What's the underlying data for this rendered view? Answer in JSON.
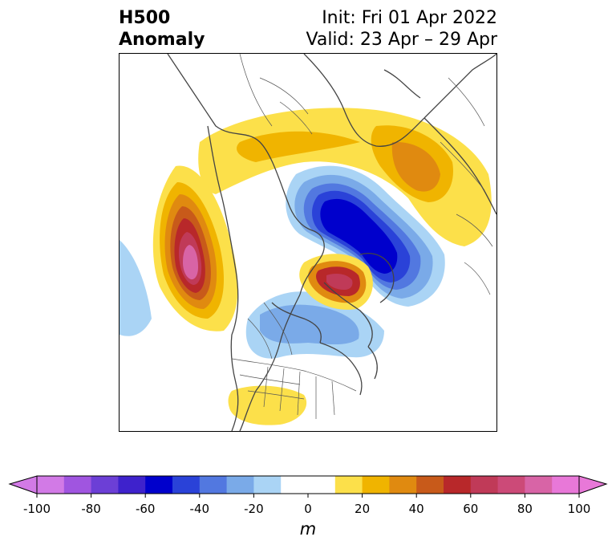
{
  "header": {
    "title_line1": "H500",
    "title_line2": "Anomaly",
    "init_text": "Init: Fri 01 Apr 2022",
    "valid_text": "Valid: 23 Apr – 29 Apr"
  },
  "colorbar": {
    "unit": "m",
    "ticks": [
      "-100",
      "-80",
      "-60",
      "-40",
      "-20",
      "0",
      "20",
      "40",
      "60",
      "80",
      "100"
    ],
    "colors": [
      "#d27ae6",
      "#a055e0",
      "#6c3fd6",
      "#3e22cc",
      "#0000cc",
      "#2a42d8",
      "#5278e0",
      "#7aaae8",
      "#aad4f5",
      "#ffffff",
      "#ffffff",
      "#fce04a",
      "#f0b400",
      "#e08a10",
      "#c85a1a",
      "#b8282a",
      "#c03a58",
      "#cc4a78",
      "#d864a6",
      "#e878d8"
    ]
  },
  "map": {
    "variable": "500 hPa geopotential height anomaly",
    "features": [
      "continents",
      "country-borders",
      "us-state-borders"
    ]
  }
}
